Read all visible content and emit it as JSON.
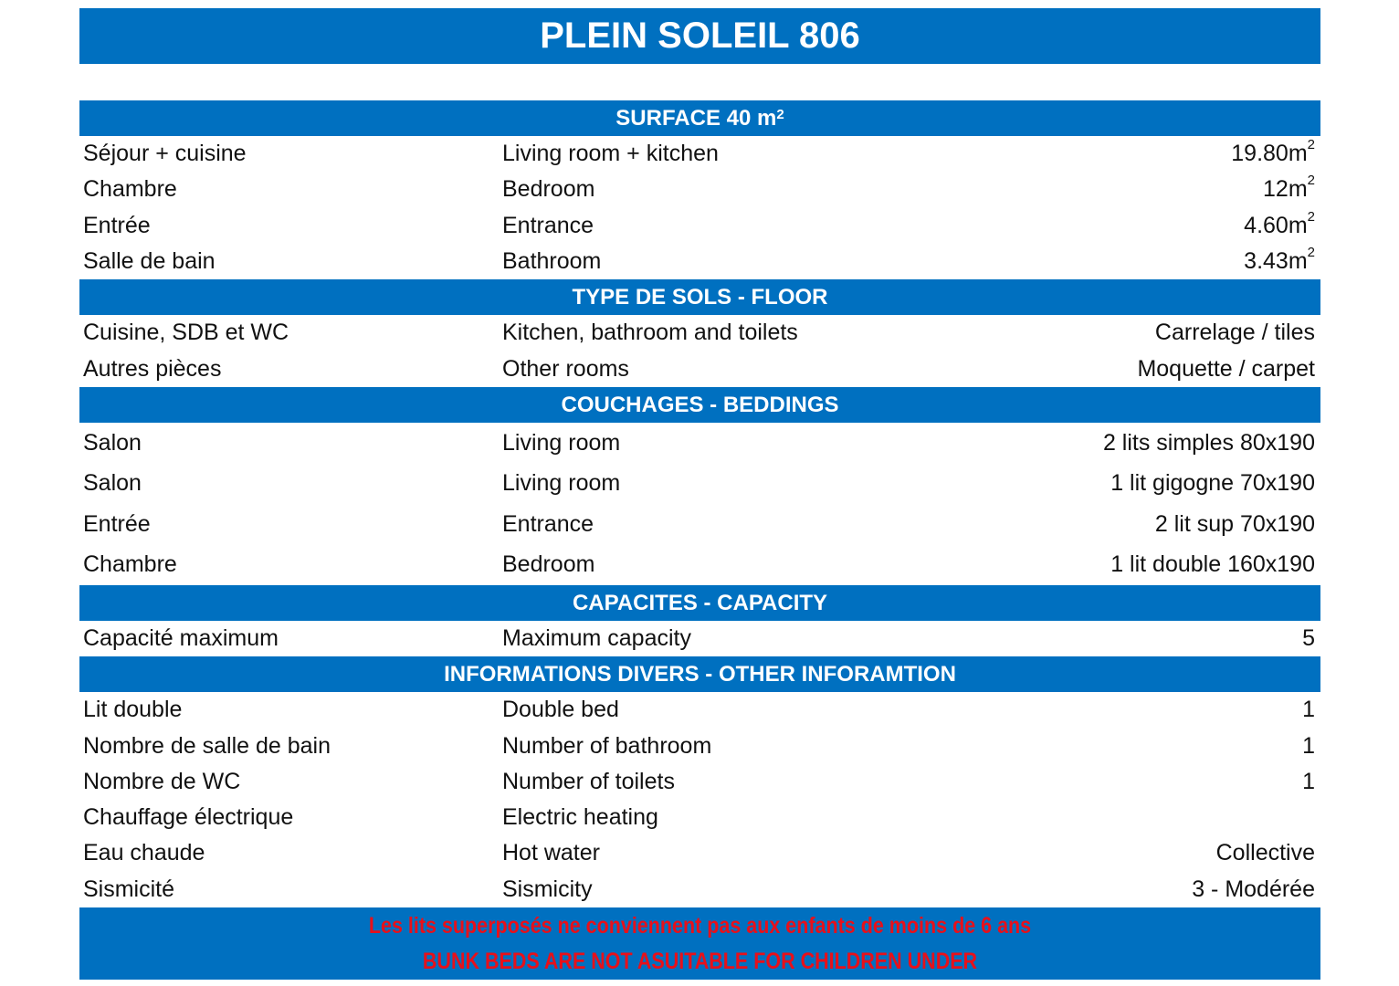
{
  "title": "PLEIN SOLEIL 806",
  "colors": {
    "header_blue": "#0070C0",
    "warning_red": "#E8101A"
  },
  "surface": {
    "header": "SURFACE 40 m",
    "header_sup": "2",
    "rows": [
      {
        "fr": "Séjour + cuisine",
        "en": "Living room + kitchen",
        "value": "19.80m",
        "sup": "2"
      },
      {
        "fr": "Chambre",
        "en": "Bedroom",
        "value": "12m",
        "sup": "2"
      },
      {
        "fr": "Entrée",
        "en": "Entrance",
        "value": "4.60m",
        "sup": "2"
      },
      {
        "fr": "Salle de bain",
        "en": "Bathroom",
        "value": "3.43m",
        "sup": "2"
      }
    ]
  },
  "floor": {
    "header": "TYPE DE SOLS - FLOOR",
    "rows": [
      {
        "fr": "Cuisine, SDB et WC",
        "en": "Kitchen, bathroom and toilets",
        "value": "Carrelage / tiles"
      },
      {
        "fr": "Autres pièces",
        "en": "Other rooms",
        "value": "Moquette / carpet"
      }
    ]
  },
  "beddings": {
    "header": "COUCHAGES - BEDDINGS",
    "rows": [
      {
        "fr": "Salon",
        "en": "Living room",
        "value": "2 lits simples 80x190"
      },
      {
        "fr": "Salon",
        "en": "Living room",
        "value": "1 lit gigogne 70x190"
      },
      {
        "fr": "Entrée",
        "en": "Entrance",
        "value": "2 lit sup 70x190"
      },
      {
        "fr": "Chambre",
        "en": "Bedroom",
        "value": "1 lit double 160x190"
      }
    ]
  },
  "capacity": {
    "header": "CAPACITES - CAPACITY",
    "rows": [
      {
        "fr": "Capacité maximum",
        "en": "Maximum capacity",
        "value": "5"
      }
    ]
  },
  "info": {
    "header": "INFORMATIONS DIVERS - OTHER INFORAMTION",
    "rows": [
      {
        "fr": "Lit double",
        "en": "Double bed",
        "value": "1"
      },
      {
        "fr": "Nombre de salle de bain",
        "en": "Number of bathroom",
        "value": "1"
      },
      {
        "fr": "Nombre de WC",
        "en": "Number of toilets",
        "value": "1"
      },
      {
        "fr": "Chauffage électrique",
        "en": "Electric heating",
        "value": ""
      },
      {
        "fr": "Eau chaude",
        "en": "Hot water",
        "value": "Collective"
      },
      {
        "fr": "Sismicité",
        "en": "Sismicity",
        "value": "3 - Modérée"
      }
    ]
  },
  "footer": {
    "warning_fr": "Les lits superposés ne conviennent pas aux enfants de moins de 6 ans",
    "warning_en": "BUNK BEDS ARE NOT ASUITABLE FOR CHILDREN UNDER"
  }
}
